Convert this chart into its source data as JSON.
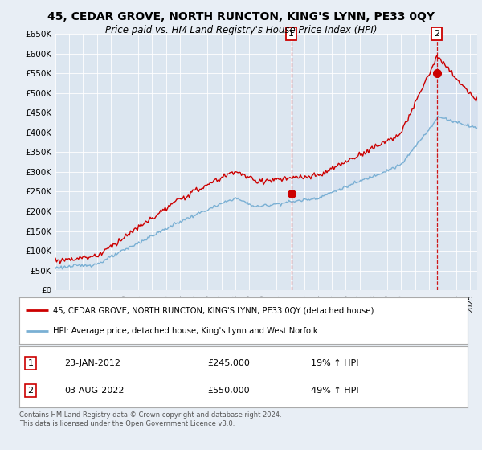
{
  "title": "45, CEDAR GROVE, NORTH RUNCTON, KING'S LYNN, PE33 0QY",
  "subtitle": "Price paid vs. HM Land Registry's House Price Index (HPI)",
  "background_color": "#e8eef5",
  "plot_bg_color": "#dce6f0",
  "plot_bg_shade": "#ccd9ee",
  "legend_line1": "45, CEDAR GROVE, NORTH RUNCTON, KING'S LYNN, PE33 0QY (detached house)",
  "legend_line2": "HPI: Average price, detached house, King's Lynn and West Norfolk",
  "annotation1_date": "23-JAN-2012",
  "annotation1_price": "£245,000",
  "annotation1_pct": "19% ↑ HPI",
  "annotation2_date": "03-AUG-2022",
  "annotation2_price": "£550,000",
  "annotation2_pct": "49% ↑ HPI",
  "footnote": "Contains HM Land Registry data © Crown copyright and database right 2024.\nThis data is licensed under the Open Government Licence v3.0.",
  "red_color": "#cc0000",
  "blue_color": "#7ab0d4",
  "ylim_min": 0,
  "ylim_max": 650000,
  "yticks": [
    0,
    50000,
    100000,
    150000,
    200000,
    250000,
    300000,
    350000,
    400000,
    450000,
    500000,
    550000,
    600000,
    650000
  ],
  "sale1_x": 2012.06,
  "sale1_y": 245000,
  "sale2_x": 2022.58,
  "sale2_y": 550000,
  "xmin": 1995.0,
  "xmax": 2025.5
}
